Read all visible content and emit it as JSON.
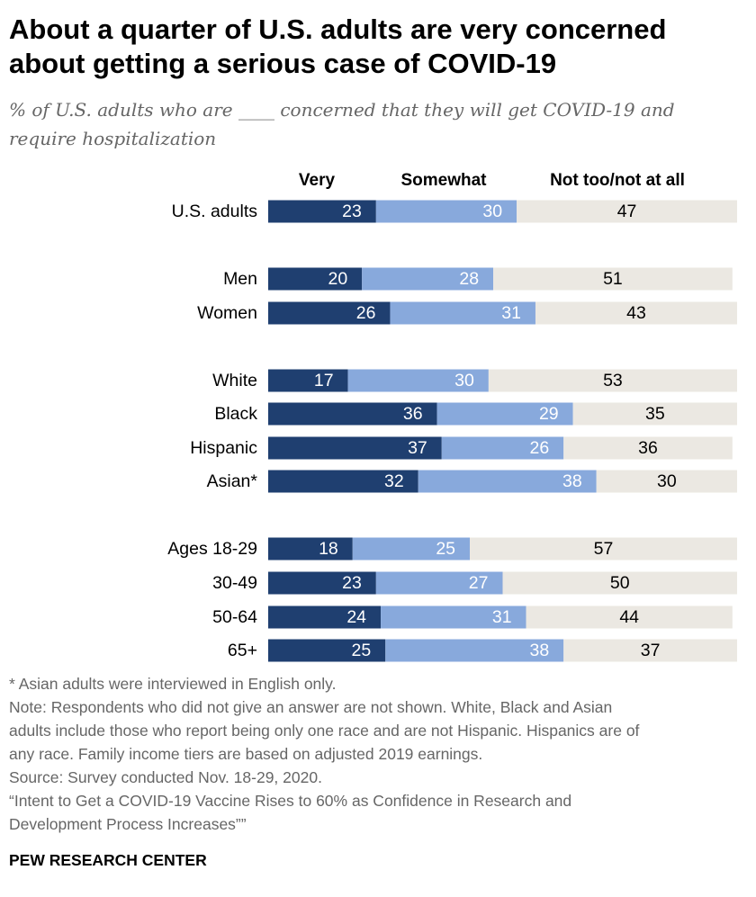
{
  "title_lines": [
    "About a quarter of U.S. adults are very concerned",
    "about getting a serious case of COVID-19"
  ],
  "subtitle_lines": [
    "% of U.S. adults who are ____ concerned that they will get COVID-19 and",
    "require hospitalization"
  ],
  "chart_data": {
    "type": "bar",
    "orientation": "horizontal",
    "stacked": true,
    "xlim": [
      0,
      100
    ],
    "series_colors": [
      "#1f3f70",
      "#88a9dc",
      "#ebe8e2"
    ],
    "label_colors": [
      "#ffffff",
      "#ffffff",
      "#000000"
    ],
    "series": [
      {
        "name": "Very",
        "values": [
          23,
          20,
          26,
          17,
          36,
          37,
          32,
          18,
          23,
          24,
          25
        ]
      },
      {
        "name": "Somewhat",
        "values": [
          30,
          28,
          31,
          30,
          29,
          26,
          38,
          25,
          27,
          31,
          38
        ]
      },
      {
        "name": "Not too/not at all",
        "values": [
          47,
          51,
          43,
          53,
          35,
          36,
          30,
          57,
          50,
          44,
          37
        ]
      }
    ],
    "categories": [
      "U.S. adults",
      "Men",
      "Women",
      "White",
      "Black",
      "Hispanic",
      "Asian*",
      "Ages 18-29",
      "30-49",
      "50-64",
      "65+"
    ],
    "groups": [
      [
        0
      ],
      [
        1,
        2
      ],
      [
        3,
        4,
        5,
        6
      ],
      [
        7,
        8,
        9,
        10
      ]
    ]
  },
  "footnotes": [
    "* Asian adults were interviewed in English only.",
    "Note: Respondents who did not give an answer are not shown. White, Black and Asian",
    "adults include those who report being only one race and are not Hispanic. Hispanics are of",
    "any race. Family income tiers are based on adjusted 2019 earnings.",
    "Source: Survey conducted Nov. 18-29, 2020.",
    "“Intent to Get a COVID-19 Vaccine Rises to 60% as Confidence in Research and",
    "Development Process Increases””"
  ],
  "source_brand": "PEW RESEARCH CENTER"
}
